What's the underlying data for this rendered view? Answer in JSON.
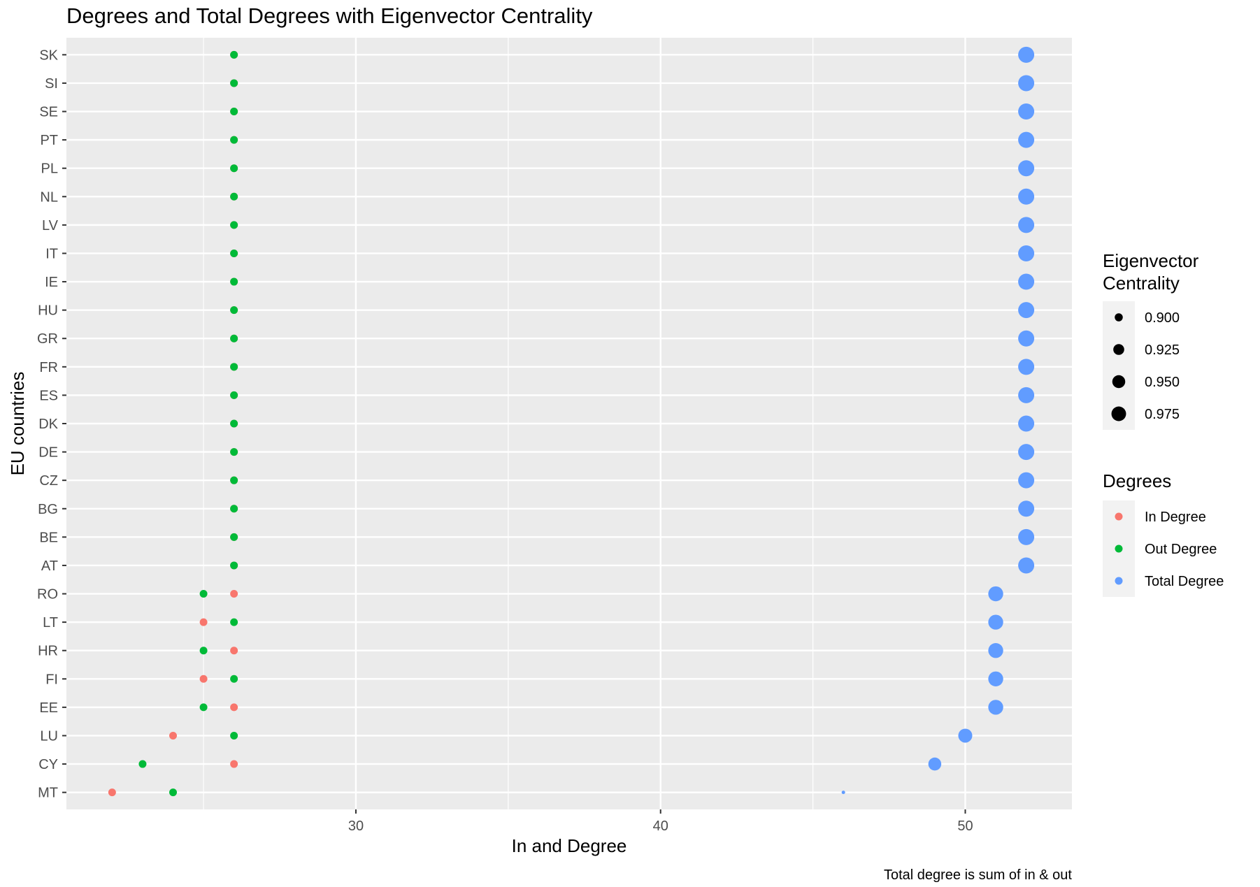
{
  "chart_data": {
    "type": "scatter",
    "title": "Degrees and Total Degrees with Eigenvector Centrality",
    "xlabel": "In and Degree",
    "ylabel": "EU countries",
    "caption": "Total degree is sum of in & out",
    "xlim": [
      20.5,
      53.5
    ],
    "x_ticks": [
      30,
      40,
      50
    ],
    "x_minor_ticks": [
      25,
      35,
      45
    ],
    "grid": true,
    "legend_position": "right",
    "categories": [
      "MT",
      "CY",
      "LU",
      "EE",
      "FI",
      "HR",
      "LT",
      "RO",
      "AT",
      "BE",
      "BG",
      "CZ",
      "DE",
      "DK",
      "ES",
      "FR",
      "GR",
      "HU",
      "IE",
      "IT",
      "LV",
      "NL",
      "PL",
      "PT",
      "SE",
      "SI",
      "SK"
    ],
    "series": [
      {
        "name": "In Degree",
        "color": "#F8766D",
        "values": [
          22,
          26,
          24,
          26,
          25,
          26,
          25,
          26,
          26,
          26,
          26,
          26,
          26,
          26,
          26,
          26,
          26,
          26,
          26,
          26,
          26,
          26,
          26,
          26,
          26,
          26,
          26
        ]
      },
      {
        "name": "Out Degree",
        "color": "#00BA38",
        "values": [
          24,
          23,
          26,
          25,
          26,
          25,
          26,
          25,
          26,
          26,
          26,
          26,
          26,
          26,
          26,
          26,
          26,
          26,
          26,
          26,
          26,
          26,
          26,
          26,
          26,
          26,
          26
        ]
      },
      {
        "name": "Total Degree",
        "color": "#619CFF",
        "values": [
          46,
          49,
          50,
          51,
          51,
          51,
          51,
          51,
          52,
          52,
          52,
          52,
          52,
          52,
          52,
          52,
          52,
          52,
          52,
          52,
          52,
          52,
          52,
          52,
          52,
          52,
          52
        ],
        "eigenvector_centrality": [
          0.885,
          0.95,
          0.965,
          0.98,
          0.98,
          0.98,
          0.98,
          0.98,
          1,
          1,
          1,
          1,
          1,
          1,
          1,
          1,
          1,
          1,
          1,
          1,
          1,
          1,
          1,
          1,
          1,
          1,
          1
        ]
      }
    ],
    "size_legend": {
      "title_lines": [
        "Eigenvector",
        "Centrality"
      ],
      "labels": [
        "0.900",
        "0.925",
        "0.950",
        "0.975"
      ],
      "values": [
        0.9,
        0.925,
        0.95,
        0.975
      ]
    },
    "color_legend": {
      "title": "Degrees",
      "labels": [
        "In Degree",
        "Out Degree",
        "Total Degree"
      ]
    },
    "colors": {
      "panel_bg": "#EBEBEB",
      "grid": "#FFFFFF",
      "axis_text": "#4D4D4D",
      "legend_key_bg": "#F2F2F2"
    }
  }
}
